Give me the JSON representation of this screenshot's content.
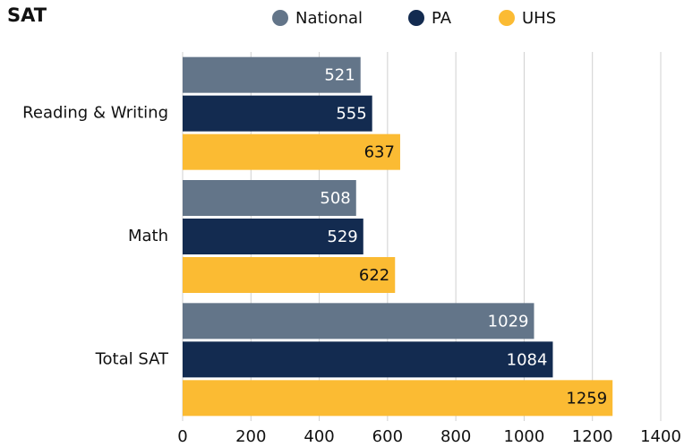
{
  "chart_data": {
    "type": "bar",
    "orientation": "horizontal",
    "title": "SAT",
    "categories": [
      "Reading & Writing",
      "Math",
      "Total SAT"
    ],
    "series": [
      {
        "name": "National",
        "color": "#637589",
        "values": [
          521,
          508,
          1029
        ]
      },
      {
        "name": "PA",
        "color": "#132b50",
        "values": [
          555,
          529,
          1084
        ]
      },
      {
        "name": "UHS",
        "color": "#fbbb33",
        "values": [
          637,
          622,
          1259
        ]
      }
    ],
    "xlim": [
      0,
      1400
    ],
    "xticks": [
      0,
      200,
      400,
      600,
      800,
      1000,
      1200,
      1400
    ],
    "grid": true,
    "legend": "top"
  }
}
